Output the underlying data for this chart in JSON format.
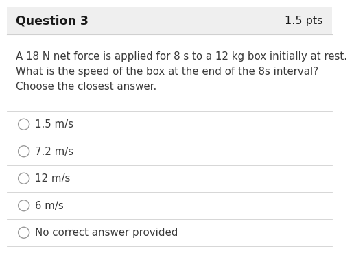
{
  "header_text": "Question 3",
  "points_text": "1.5 pts",
  "question_lines": [
    "A 18 N net force is applied for 8 s to a 12 kg box initially at rest.",
    "What is the speed of the box at the end of the 8s interval?",
    "Choose the closest answer."
  ],
  "choices": [
    "1.5 m/s",
    "7.2 m/s",
    "12 m/s",
    "6 m/s",
    "No correct answer provided"
  ],
  "header_bg": "#efefef",
  "body_bg": "#ffffff",
  "text_color": "#3a3a3a",
  "header_text_color": "#1a1a1a",
  "line_color": "#d0d0d0",
  "header_fontsize": 12.5,
  "points_fontsize": 11.5,
  "question_fontsize": 10.8,
  "choice_fontsize": 10.8
}
